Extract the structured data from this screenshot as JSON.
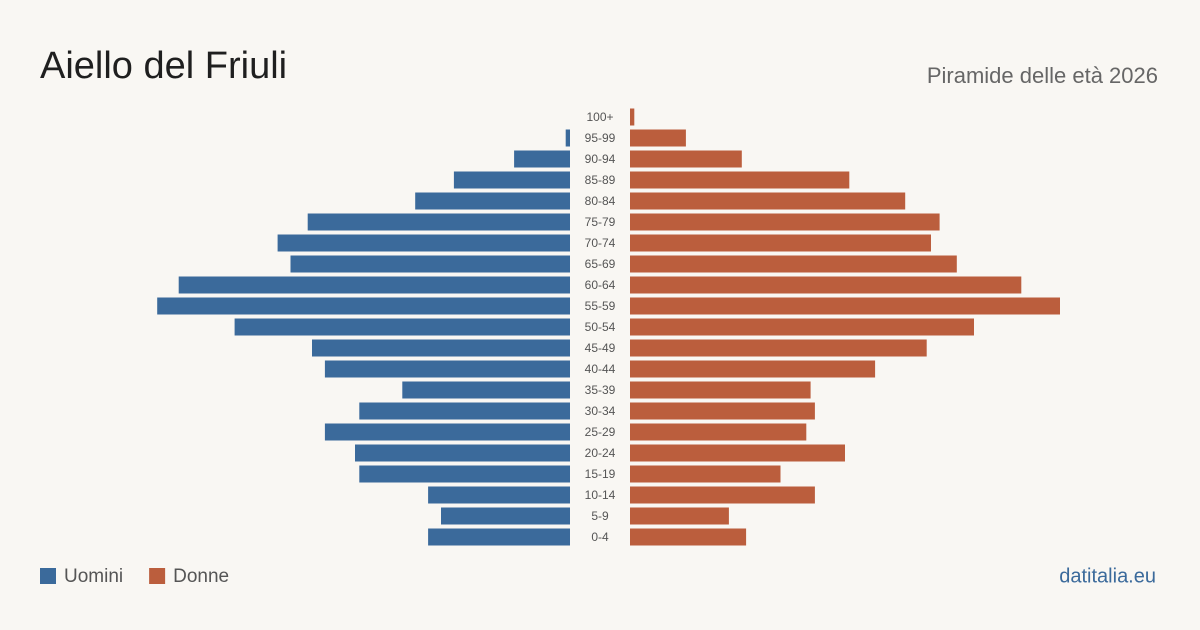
{
  "chart_data": {
    "type": "population-pyramid",
    "title": "Aiello del Friuli",
    "subtitle": "Piramide delle età 2026",
    "source": "datitalia.eu",
    "categories": [
      "100+",
      "95-99",
      "90-94",
      "85-89",
      "80-84",
      "75-79",
      "70-74",
      "65-69",
      "60-64",
      "55-59",
      "50-54",
      "45-49",
      "40-44",
      "35-39",
      "30-34",
      "25-29",
      "20-24",
      "15-19",
      "10-14",
      "5-9",
      "0-4"
    ],
    "xlim": [
      0,
      100
    ],
    "series": [
      {
        "name": "Uomini",
        "color": "#3b6a9b",
        "values": [
          0,
          1,
          13,
          27,
          36,
          61,
          68,
          65,
          91,
          96,
          78,
          60,
          57,
          39,
          49,
          57,
          50,
          49,
          33,
          30,
          33
        ]
      },
      {
        "name": "Donne",
        "color": "#bb5e3d",
        "values": [
          1,
          13,
          26,
          51,
          64,
          72,
          70,
          76,
          91,
          100,
          80,
          69,
          57,
          42,
          43,
          41,
          50,
          35,
          43,
          23,
          27
        ]
      }
    ]
  }
}
